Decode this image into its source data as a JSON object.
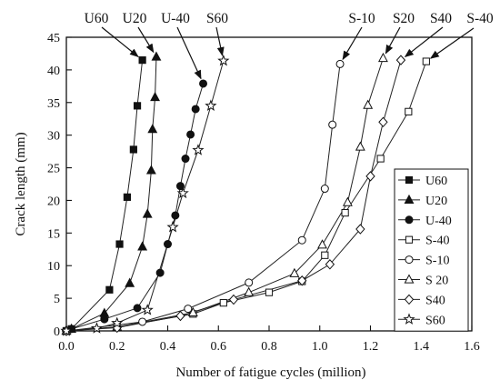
{
  "chart_data": {
    "type": "line",
    "title": "",
    "xlabel": "Number of fatigue cycles (million)",
    "ylabel": "Crack length (mm)",
    "xlim": [
      0.0,
      1.6
    ],
    "ylim": [
      0,
      45
    ],
    "x_ticks": [
      "0.0",
      "0.2",
      "0.4",
      "0.6",
      "0.8",
      "1.0",
      "1.2",
      "1.4",
      "1.6"
    ],
    "y_ticks": [
      "0",
      "5",
      "10",
      "15",
      "20",
      "25",
      "30",
      "35",
      "40",
      "45"
    ],
    "grid": false,
    "legend_position": "bottom-right",
    "series": [
      {
        "name": "U60",
        "marker": "square-filled",
        "points": [
          [
            0.0,
            0
          ],
          [
            0.02,
            0.3
          ],
          [
            0.17,
            6.3
          ],
          [
            0.21,
            13.3
          ],
          [
            0.24,
            20.5
          ],
          [
            0.265,
            27.8
          ],
          [
            0.28,
            34.5
          ],
          [
            0.3,
            41.5
          ]
        ]
      },
      {
        "name": "U20",
        "marker": "triangle-filled",
        "points": [
          [
            0.0,
            0
          ],
          [
            0.02,
            0.3
          ],
          [
            0.15,
            2.7
          ],
          [
            0.25,
            7.3
          ],
          [
            0.3,
            12.9
          ],
          [
            0.32,
            17.9
          ],
          [
            0.335,
            24.6
          ],
          [
            0.34,
            30.9
          ],
          [
            0.35,
            35.8
          ],
          [
            0.355,
            42.0
          ]
        ]
      },
      {
        "name": "U-40",
        "marker": "circle-filled",
        "points": [
          [
            0.0,
            0
          ],
          [
            0.02,
            0.3
          ],
          [
            0.15,
            1.8
          ],
          [
            0.28,
            3.5
          ],
          [
            0.37,
            8.9
          ],
          [
            0.4,
            13.3
          ],
          [
            0.43,
            17.7
          ],
          [
            0.45,
            22.2
          ],
          [
            0.47,
            26.4
          ],
          [
            0.49,
            30.1
          ],
          [
            0.51,
            34.0
          ],
          [
            0.54,
            37.9
          ]
        ]
      },
      {
        "name": "S-40",
        "marker": "square-open",
        "points": [
          [
            0.0,
            0
          ],
          [
            0.2,
            0.6
          ],
          [
            0.5,
            2.6
          ],
          [
            0.62,
            4.3
          ],
          [
            0.8,
            5.9
          ],
          [
            0.93,
            7.6
          ],
          [
            1.02,
            11.6
          ],
          [
            1.1,
            18.1
          ],
          [
            1.24,
            26.4
          ],
          [
            1.35,
            33.6
          ],
          [
            1.42,
            41.3
          ]
        ]
      },
      {
        "name": "S-10",
        "marker": "circle-open",
        "points": [
          [
            0.0,
            0
          ],
          [
            0.2,
            0.9
          ],
          [
            0.3,
            1.4
          ],
          [
            0.48,
            3.4
          ],
          [
            0.72,
            7.4
          ],
          [
            0.93,
            13.9
          ],
          [
            1.02,
            21.8
          ],
          [
            1.05,
            31.6
          ],
          [
            1.08,
            40.9
          ]
        ]
      },
      {
        "name": "S 20",
        "marker": "triangle-open",
        "points": [
          [
            0.0,
            0
          ],
          [
            0.2,
            0.6
          ],
          [
            0.5,
            2.8
          ],
          [
            0.72,
            5.9
          ],
          [
            0.9,
            8.8
          ],
          [
            1.01,
            13.2
          ],
          [
            1.11,
            19.7
          ],
          [
            1.16,
            28.2
          ],
          [
            1.19,
            34.6
          ],
          [
            1.25,
            41.8
          ]
        ]
      },
      {
        "name": "S40",
        "marker": "diamond-open",
        "points": [
          [
            0.0,
            0
          ],
          [
            0.2,
            0.5
          ],
          [
            0.45,
            2.3
          ],
          [
            0.66,
            4.8
          ],
          [
            0.93,
            7.7
          ],
          [
            1.04,
            10.2
          ],
          [
            1.16,
            15.6
          ],
          [
            1.2,
            23.7
          ],
          [
            1.25,
            32.0
          ],
          [
            1.32,
            41.5
          ]
        ]
      },
      {
        "name": "S60",
        "marker": "star-open",
        "points": [
          [
            0.0,
            0
          ],
          [
            0.12,
            0.4
          ],
          [
            0.2,
            1.2
          ],
          [
            0.32,
            3.2
          ],
          [
            0.42,
            15.9
          ],
          [
            0.46,
            21.1
          ],
          [
            0.52,
            27.7
          ],
          [
            0.57,
            34.5
          ],
          [
            0.62,
            41.4
          ]
        ]
      }
    ],
    "annotations": [
      {
        "text": "U60",
        "series": "U60"
      },
      {
        "text": "U20",
        "series": "U20"
      },
      {
        "text": "U-40",
        "series": "U-40"
      },
      {
        "text": "S60",
        "series": "S60"
      },
      {
        "text": "S-10",
        "series": "S-10"
      },
      {
        "text": "S20",
        "series": "S 20"
      },
      {
        "text": "S40",
        "series": "S40"
      },
      {
        "text": "S-40",
        "series": "S-40"
      }
    ]
  }
}
